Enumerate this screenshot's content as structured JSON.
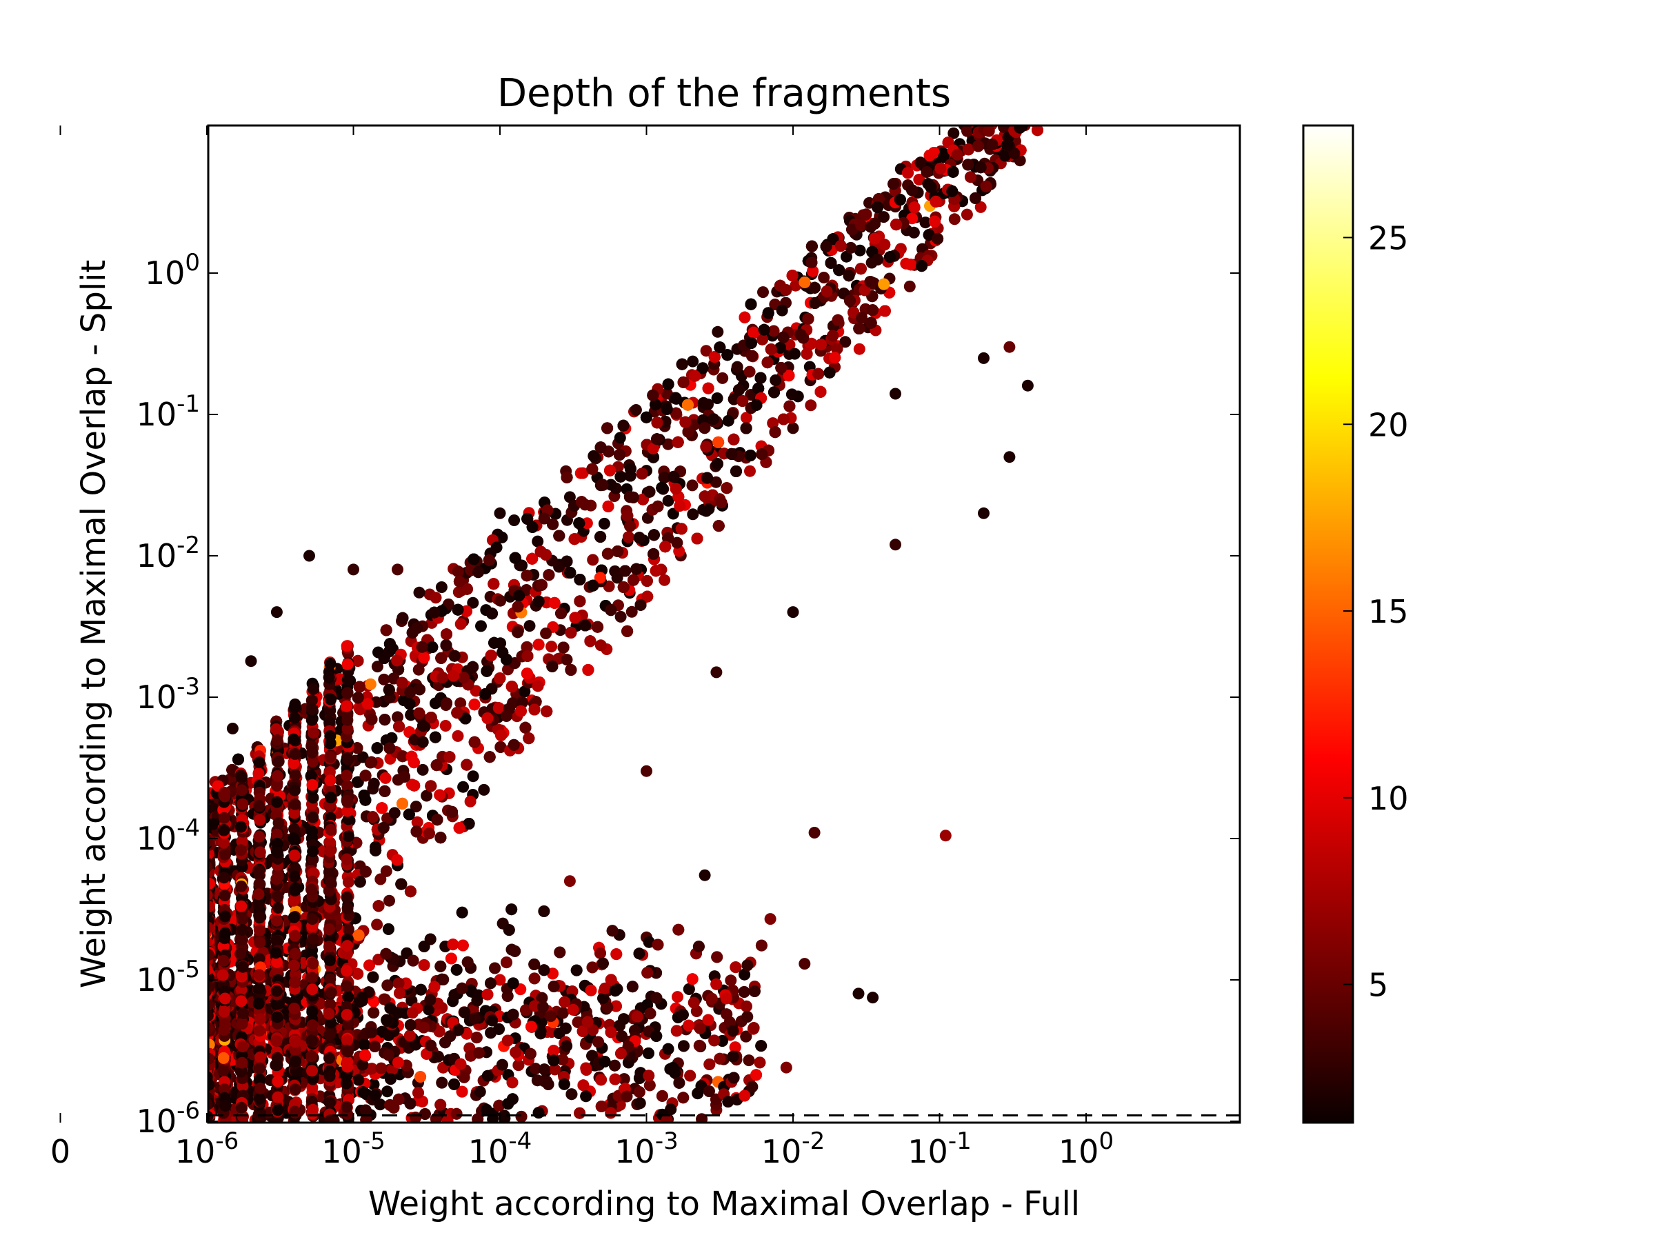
{
  "chart_data": {
    "type": "scatter",
    "title": "Depth of the fragments",
    "xlabel": "Weight according to Maximal Overlap - Full",
    "ylabel": "Weight according to Maximal Overlap - Split",
    "x_scale": "symlog",
    "y_scale": "symlog",
    "x_ticks": [
      {
        "value": 0,
        "base": "0",
        "exp": ""
      },
      {
        "value": 1e-06,
        "base": "10",
        "exp": "-6"
      },
      {
        "value": 1e-05,
        "base": "10",
        "exp": "-5"
      },
      {
        "value": 0.0001,
        "base": "10",
        "exp": "-4"
      },
      {
        "value": 0.001,
        "base": "10",
        "exp": "-3"
      },
      {
        "value": 0.01,
        "base": "10",
        "exp": "-2"
      },
      {
        "value": 0.1,
        "base": "10",
        "exp": "-1"
      },
      {
        "value": 1,
        "base": "10",
        "exp": "0"
      }
    ],
    "y_ticks": [
      {
        "value": 0,
        "base": "0",
        "exp": ""
      },
      {
        "value": 1e-06,
        "base": "10",
        "exp": "-6"
      },
      {
        "value": 1e-05,
        "base": "10",
        "exp": "-5"
      },
      {
        "value": 0.0001,
        "base": "10",
        "exp": "-4"
      },
      {
        "value": 0.001,
        "base": "10",
        "exp": "-3"
      },
      {
        "value": 0.01,
        "base": "10",
        "exp": "-2"
      },
      {
        "value": 0.1,
        "base": "10",
        "exp": "-1"
      },
      {
        "value": 1,
        "base": "10",
        "exp": "0"
      }
    ],
    "xlim": [
      0,
      1
    ],
    "ylim": [
      0,
      1
    ],
    "reference_lines": [
      {
        "orientation": "vertical",
        "value": 1e-06,
        "style": "dashed"
      },
      {
        "orientation": "horizontal",
        "value": 1.1e-06,
        "style": "dashed"
      }
    ],
    "colorbar": {
      "colormap": "hot",
      "min": 1.3,
      "max": 28,
      "ticks": [
        5,
        10,
        15,
        20,
        25
      ],
      "tick_labels": [
        "5",
        "10",
        "15",
        "20",
        "25"
      ]
    },
    "points_note": "about 9000 points",
    "points": [
      [
        0.0,
        0.0,
        3
      ],
      [
        5e-07,
        7e-05,
        2
      ],
      [
        5e-07,
        5e-05,
        3
      ],
      [
        5e-07,
        2e-05,
        4
      ],
      [
        5e-07,
        5e-06,
        5
      ],
      [
        5e-07,
        1e-06,
        6
      ],
      [
        5e-07,
        3e-07,
        7
      ],
      [
        1e-06,
        9e-05,
        2
      ],
      [
        1e-06,
        4e-05,
        4
      ],
      [
        1e-06,
        1e-05,
        6
      ],
      [
        1e-06,
        2e-06,
        8
      ],
      [
        1.5e-06,
        0.0006,
        2
      ],
      [
        2e-06,
        0.0018,
        2
      ],
      [
        3e-06,
        0.004,
        2
      ],
      [
        5e-06,
        0.01,
        2
      ],
      [
        1e-05,
        0.008,
        3
      ],
      [
        2e-05,
        0.008,
        4
      ],
      [
        4e-05,
        0.006,
        2
      ],
      [
        0.0001,
        0.02,
        2
      ],
      [
        0.0003,
        0.026,
        2
      ],
      [
        0.001,
        0.04,
        2
      ],
      [
        0.003,
        0.055,
        2
      ],
      [
        0.01,
        0.08,
        3
      ],
      [
        0.05,
        0.14,
        2
      ],
      [
        0.2,
        0.25,
        2
      ],
      [
        0.3,
        0.3,
        5
      ],
      [
        0.4,
        0.16,
        2
      ],
      [
        0.3,
        0.05,
        2
      ],
      [
        0.2,
        0.02,
        2
      ],
      [
        0.05,
        0.012,
        3
      ],
      [
        0.01,
        0.004,
        2
      ],
      [
        0.003,
        0.0015,
        3
      ],
      [
        0.001,
        0.0003,
        4
      ],
      [
        0.0003,
        5e-05,
        6
      ],
      [
        0.0001,
        1e-05,
        9
      ],
      [
        0.001,
        2e-05,
        4
      ],
      [
        0.0025,
        5.5e-05,
        2
      ],
      [
        0.014,
        0.00011,
        4
      ],
      [
        0.11,
        0.000105,
        7
      ],
      [
        0.007,
        2.7e-05,
        6
      ],
      [
        0.012,
        1.3e-05,
        4
      ],
      [
        0.028,
        8e-06,
        2
      ],
      [
        0.035,
        7.5e-06,
        2
      ],
      [
        0.005,
        2.7e-06,
        4
      ],
      [
        0.009,
        2.4e-06,
        6
      ],
      [
        0.0028,
        7e-06,
        5
      ],
      [
        0.0022,
        6e-06,
        6
      ],
      [
        0.003,
        1.2e-06,
        6
      ],
      [
        0.005,
        3e-07,
        4
      ],
      [
        0.0022,
        6e-07,
        4
      ],
      [
        0.001,
        4e-07,
        3
      ],
      [
        0.0005,
        3e-08,
        4
      ],
      [
        0.0002,
        2e-07,
        10
      ],
      [
        0.009,
        0.0,
        4
      ]
    ]
  }
}
